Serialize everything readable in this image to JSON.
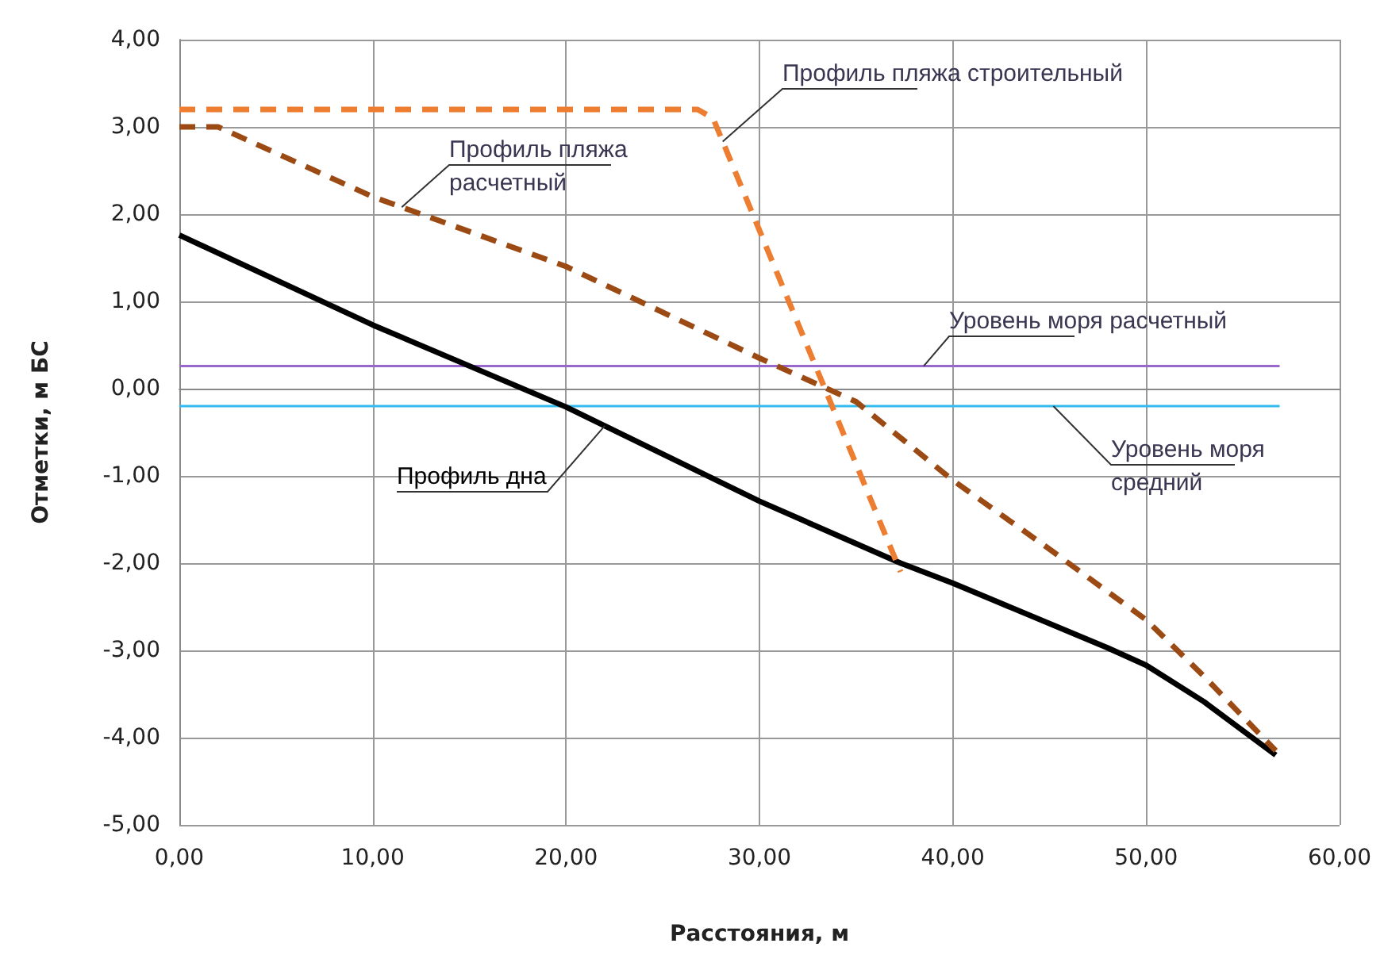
{
  "chart_data": {
    "type": "line",
    "xlabel": "Расстояния, м",
    "ylabel": "Отметки, м БС",
    "xlim": [
      0,
      60
    ],
    "ylim": [
      -5,
      4
    ],
    "xticks": [
      {
        "value": 0,
        "label": "0,00"
      },
      {
        "value": 10,
        "label": "10,00"
      },
      {
        "value": 20,
        "label": "20,00"
      },
      {
        "value": 30,
        "label": "30,00"
      },
      {
        "value": 40,
        "label": "40,00"
      },
      {
        "value": 50,
        "label": "50,00"
      },
      {
        "value": 60,
        "label": "60,00"
      }
    ],
    "yticks": [
      {
        "value": -5,
        "label": "-5,00"
      },
      {
        "value": -4,
        "label": "-4,00"
      },
      {
        "value": -3,
        "label": "-3,00"
      },
      {
        "value": -2,
        "label": "-2,00"
      },
      {
        "value": -1,
        "label": "-1,00"
      },
      {
        "value": 0,
        "label": "0,00"
      },
      {
        "value": 1,
        "label": "1,00"
      },
      {
        "value": 2,
        "label": "2,00"
      },
      {
        "value": 3,
        "label": "3,00"
      },
      {
        "value": 4,
        "label": "4,00"
      }
    ],
    "grid": true,
    "legend": false,
    "marker": "none",
    "series": [
      {
        "name": "Профиль пляжа строительный",
        "color": "#ed7d31",
        "line_style": "dashed",
        "x": [
          0,
          26.8,
          27.6,
          37.3
        ],
        "values": [
          3.2,
          3.2,
          3.1,
          -2.1
        ]
      },
      {
        "name": "Профиль пляжа расчетный",
        "color": "#9c4a14",
        "line_style": "dashed",
        "x": [
          0,
          2,
          10,
          20,
          30,
          35,
          40,
          45,
          50,
          53,
          56.7
        ],
        "values": [
          3.0,
          3.0,
          2.2,
          1.4,
          0.35,
          -0.15,
          -1.05,
          -1.84,
          -2.65,
          -3.3,
          -4.15
        ]
      },
      {
        "name": "Профиль дна",
        "color": "#000000",
        "line_style": "solid",
        "x": [
          0,
          10,
          20,
          30,
          37.3,
          40,
          48,
          50,
          53,
          56.7
        ],
        "values": [
          1.76,
          0.73,
          -0.21,
          -1.29,
          -2.0,
          -2.23,
          -2.97,
          -3.17,
          -3.59,
          -4.2
        ]
      },
      {
        "name": "Уровень моря расчетный",
        "color": "#9966cc",
        "line_style": "solid",
        "x": [
          0,
          56.9
        ],
        "values": [
          0.26,
          0.26
        ]
      },
      {
        "name": "Уровень моря средний",
        "color": "#33bbee",
        "line_style": "solid",
        "x": [
          0,
          56.9
        ],
        "values": [
          -0.2,
          -0.2
        ]
      }
    ]
  }
}
